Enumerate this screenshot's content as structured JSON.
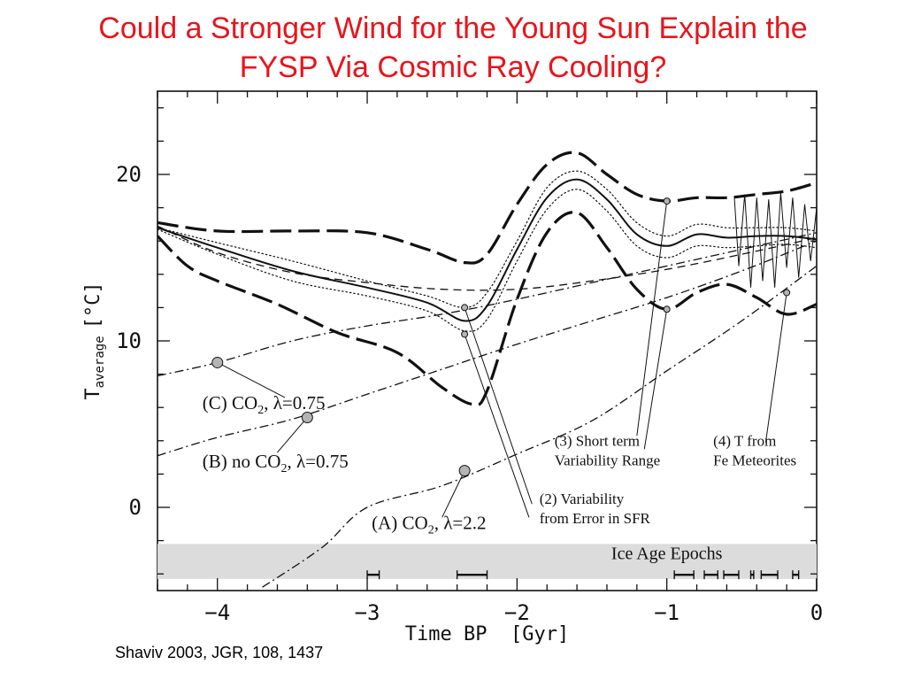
{
  "slide": {
    "title_line1": "Could a Stronger Wind for the Young Sun Explain the",
    "title_line2": "FYSP Via Cosmic Ray Cooling?",
    "citation": "Shaviv 2003, JGR, 108, 1437"
  },
  "chart_data": {
    "type": "line",
    "xlabel": "Time BP  [Gyr]",
    "ylabel_main": "T",
    "ylabel_sub": "average",
    "ylabel_unit": "[°C]",
    "xlim": [
      -4.4,
      0
    ],
    "ylim": [
      -5,
      25
    ],
    "xticks": [
      -4,
      -3,
      -2,
      -1,
      0
    ],
    "xtick_labels": [
      "−4",
      "−3",
      "−2",
      "−1",
      "0"
    ],
    "yticks": [
      0,
      10,
      20
    ],
    "ytick_labels": [
      "0",
      "10",
      "20"
    ],
    "grid": false,
    "legend": "none",
    "colors": {
      "lines": "#111111",
      "ice_band": "#dcdcdc",
      "markers": "#b4b4b4"
    },
    "ice_band": {
      "label": "Ice Age Epochs",
      "y_range": [
        -4.3,
        -2.2
      ]
    },
    "ice_age_epochs": [
      [
        -3.0,
        -2.92
      ],
      [
        -2.4,
        -2.2
      ],
      [
        -0.95,
        -0.82
      ],
      [
        -0.75,
        -0.66
      ],
      [
        -0.62,
        -0.52
      ],
      [
        -0.44,
        -0.42
      ],
      [
        -0.37,
        -0.26
      ],
      [
        -0.16,
        -0.12
      ]
    ],
    "series": [
      {
        "style": "solid",
        "width": 2.0,
        "points": [
          [
            -4.4,
            16.8
          ],
          [
            -4.0,
            15.6
          ],
          [
            -3.5,
            14.2
          ],
          [
            -3.0,
            13.2
          ],
          [
            -2.6,
            12.3
          ],
          [
            -2.35,
            11.2
          ],
          [
            -2.2,
            12.1
          ],
          [
            -2.0,
            15.5
          ],
          [
            -1.8,
            18.6
          ],
          [
            -1.6,
            19.7
          ],
          [
            -1.4,
            18.5
          ],
          [
            -1.2,
            16.4
          ],
          [
            -1.0,
            15.7
          ],
          [
            -0.8,
            16.4
          ],
          [
            -0.6,
            16.2
          ],
          [
            -0.4,
            16.3
          ],
          [
            -0.2,
            16.3
          ],
          [
            0,
            16.1
          ]
        ]
      },
      {
        "style": "dotted",
        "width": 1.2,
        "points": [
          [
            -4.4,
            16.8
          ],
          [
            -4.0,
            15.9
          ],
          [
            -3.5,
            14.8
          ],
          [
            -3.0,
            13.6
          ],
          [
            -2.6,
            12.7
          ],
          [
            -2.35,
            12.0
          ],
          [
            -2.2,
            12.9
          ],
          [
            -2.0,
            16.0
          ],
          [
            -1.8,
            19.2
          ],
          [
            -1.6,
            20.2
          ],
          [
            -1.4,
            19.1
          ],
          [
            -1.2,
            17.1
          ],
          [
            -1.0,
            16.3
          ],
          [
            -0.8,
            17.0
          ],
          [
            -0.6,
            16.8
          ],
          [
            -0.4,
            16.8
          ],
          [
            -0.2,
            16.8
          ],
          [
            0,
            16.6
          ]
        ]
      },
      {
        "style": "dotted",
        "width": 1.2,
        "points": [
          [
            -4.4,
            16.7
          ],
          [
            -4.0,
            15.2
          ],
          [
            -3.5,
            13.6
          ],
          [
            -3.0,
            12.7
          ],
          [
            -2.6,
            11.8
          ],
          [
            -2.35,
            10.6
          ],
          [
            -2.2,
            11.3
          ],
          [
            -2.0,
            14.8
          ],
          [
            -1.8,
            17.9
          ],
          [
            -1.6,
            19.1
          ],
          [
            -1.4,
            17.8
          ],
          [
            -1.2,
            15.7
          ],
          [
            -1.0,
            15.0
          ],
          [
            -0.8,
            15.7
          ],
          [
            -0.6,
            15.6
          ],
          [
            -0.4,
            15.7
          ],
          [
            -0.2,
            15.8
          ],
          [
            0,
            15.6
          ]
        ]
      },
      {
        "style": "longdash",
        "width": 3.2,
        "points": [
          [
            -4.4,
            17.1
          ],
          [
            -4.0,
            16.6
          ],
          [
            -3.5,
            16.6
          ],
          [
            -3.0,
            16.5
          ],
          [
            -2.6,
            15.5
          ],
          [
            -2.35,
            14.7
          ],
          [
            -2.2,
            15.2
          ],
          [
            -2.0,
            18.2
          ],
          [
            -1.8,
            20.6
          ],
          [
            -1.6,
            21.3
          ],
          [
            -1.4,
            20.0
          ],
          [
            -1.2,
            18.8
          ],
          [
            -1.0,
            18.4
          ],
          [
            -0.8,
            18.6
          ],
          [
            -0.6,
            18.6
          ],
          [
            -0.4,
            18.8
          ],
          [
            -0.2,
            19.0
          ],
          [
            0,
            19.5
          ]
        ]
      },
      {
        "style": "longdash",
        "width": 3.2,
        "points": [
          [
            -4.4,
            16.3
          ],
          [
            -4.2,
            14.5
          ],
          [
            -4.0,
            13.6
          ],
          [
            -3.6,
            12.2
          ],
          [
            -3.2,
            10.5
          ],
          [
            -2.8,
            9.3
          ],
          [
            -2.5,
            7.2
          ],
          [
            -2.3,
            6.2
          ],
          [
            -2.2,
            7.0
          ],
          [
            -2.0,
            12.5
          ],
          [
            -1.8,
            16.5
          ],
          [
            -1.6,
            17.7
          ],
          [
            -1.4,
            15.6
          ],
          [
            -1.2,
            13.1
          ],
          [
            -1.0,
            11.9
          ],
          [
            -0.8,
            12.9
          ],
          [
            -0.6,
            13.4
          ],
          [
            -0.4,
            12.6
          ],
          [
            -0.2,
            11.6
          ],
          [
            0,
            12.2
          ]
        ]
      },
      {
        "style": "dashed",
        "width": 1.3,
        "points": [
          [
            -4.4,
            16.9
          ],
          [
            -4.0,
            15.3
          ],
          [
            -3.5,
            14.1
          ],
          [
            -3.0,
            13.5
          ],
          [
            -2.5,
            13.1
          ],
          [
            -2.0,
            13.1
          ],
          [
            -1.5,
            13.6
          ],
          [
            -1.0,
            14.3
          ],
          [
            -0.5,
            15.2
          ],
          [
            0,
            16.2
          ]
        ]
      },
      {
        "style": "dashdot",
        "width": 1.3,
        "points": [
          [
            -4.4,
            7.9
          ],
          [
            -4.0,
            8.7
          ],
          [
            -3.5,
            10.0
          ],
          [
            -3.0,
            10.9
          ],
          [
            -2.5,
            11.6
          ],
          [
            -2.0,
            12.5
          ],
          [
            -1.5,
            13.5
          ],
          [
            -1.0,
            14.5
          ],
          [
            -0.5,
            15.5
          ],
          [
            0,
            16.5
          ]
        ]
      },
      {
        "style": "dashdot",
        "width": 1.3,
        "points": [
          [
            -4.4,
            3.1
          ],
          [
            -4.0,
            4.2
          ],
          [
            -3.5,
            5.3
          ],
          [
            -3.0,
            6.8
          ],
          [
            -2.5,
            8.3
          ],
          [
            -2.0,
            9.8
          ],
          [
            -1.5,
            11.2
          ],
          [
            -1.0,
            12.6
          ],
          [
            -0.5,
            14.2
          ],
          [
            0,
            16.0
          ]
        ]
      },
      {
        "style": "dashdot",
        "width": 1.3,
        "points": [
          [
            -3.7,
            -4.8
          ],
          [
            -3.3,
            -2.4
          ],
          [
            -3.0,
            0.0
          ],
          [
            -2.5,
            1.3
          ],
          [
            -2.0,
            3.2
          ],
          [
            -1.5,
            5.2
          ],
          [
            -1.0,
            8.2
          ],
          [
            -0.5,
            11.2
          ],
          [
            0,
            14.5
          ]
        ]
      },
      {
        "style": "zigzag",
        "width": 1.0,
        "points": [
          [
            -0.55,
            18.7
          ],
          [
            -0.52,
            14.5
          ],
          [
            -0.48,
            18.8
          ],
          [
            -0.44,
            13.2
          ],
          [
            -0.4,
            18.6
          ],
          [
            -0.36,
            13.6
          ],
          [
            -0.32,
            18.5
          ],
          [
            -0.28,
            13.2
          ],
          [
            -0.24,
            18.9
          ],
          [
            -0.2,
            14.4
          ],
          [
            -0.16,
            18.6
          ],
          [
            -0.12,
            13.8
          ],
          [
            -0.08,
            18.2
          ],
          [
            -0.04,
            14.8
          ],
          [
            0,
            18.0
          ]
        ]
      }
    ],
    "markers": [
      {
        "x": -4.0,
        "y": 8.7,
        "size": 6
      },
      {
        "x": -3.4,
        "y": 5.4,
        "size": 6
      },
      {
        "x": -2.35,
        "y": 2.2,
        "size": 6
      },
      {
        "x": -2.35,
        "y": 12.0,
        "size": 3.5
      },
      {
        "x": -2.35,
        "y": 10.4,
        "size": 3.5
      },
      {
        "x": -1.0,
        "y": 18.4,
        "size": 3.5
      },
      {
        "x": -1.0,
        "y": 11.9,
        "size": 3.5
      },
      {
        "x": -0.2,
        "y": 12.9,
        "size": 3.5
      }
    ],
    "annotations": [
      {
        "id": "C",
        "parts": [
          "(C) CO",
          "2",
          ", λ=0.75"
        ],
        "at": [
          -4.1,
          5.9
        ],
        "pointer": [
          [
            -3.55,
            6.6
          ],
          [
            -4.0,
            8.7
          ]
        ]
      },
      {
        "id": "B",
        "parts": [
          "(B) no CO",
          "2",
          ", λ=0.75"
        ],
        "at": [
          -4.1,
          2.4
        ],
        "pointer": [
          [
            -3.6,
            3.3
          ],
          [
            -3.4,
            5.4
          ]
        ]
      },
      {
        "id": "A",
        "parts": [
          "(A) CO",
          "2",
          ", λ=2.2"
        ],
        "at": [
          -2.97,
          -1.3
        ],
        "pointer": [
          [
            -2.5,
            -0.6
          ],
          [
            -2.35,
            2.2
          ]
        ]
      },
      {
        "id": "2",
        "lines": [
          "(2) Variability",
          "from Error in SFR"
        ],
        "at": [
          -1.85,
          0.2
        ],
        "pointers": [
          [
            [
              -1.9,
              0.2
            ],
            [
              -2.35,
              12.0
            ]
          ],
          [
            [
              -1.92,
              -0.6
            ],
            [
              -2.35,
              10.4
            ]
          ]
        ]
      },
      {
        "id": "3",
        "lines": [
          "(3) Short term",
          "Variability Range"
        ],
        "at": [
          -1.75,
          3.7
        ],
        "pointers": [
          [
            [
              -1.2,
              4.3
            ],
            [
              -1.0,
              18.4
            ]
          ],
          [
            [
              -1.15,
              3.5
            ],
            [
              -1.0,
              11.9
            ]
          ]
        ]
      },
      {
        "id": "4",
        "lines": [
          "(4) T from",
          "Fe Meteorites"
        ],
        "at": [
          -0.69,
          3.7
        ],
        "pointers": [
          [
            [
              -0.34,
              3.9
            ],
            [
              -0.2,
              12.9
            ]
          ]
        ]
      }
    ]
  }
}
